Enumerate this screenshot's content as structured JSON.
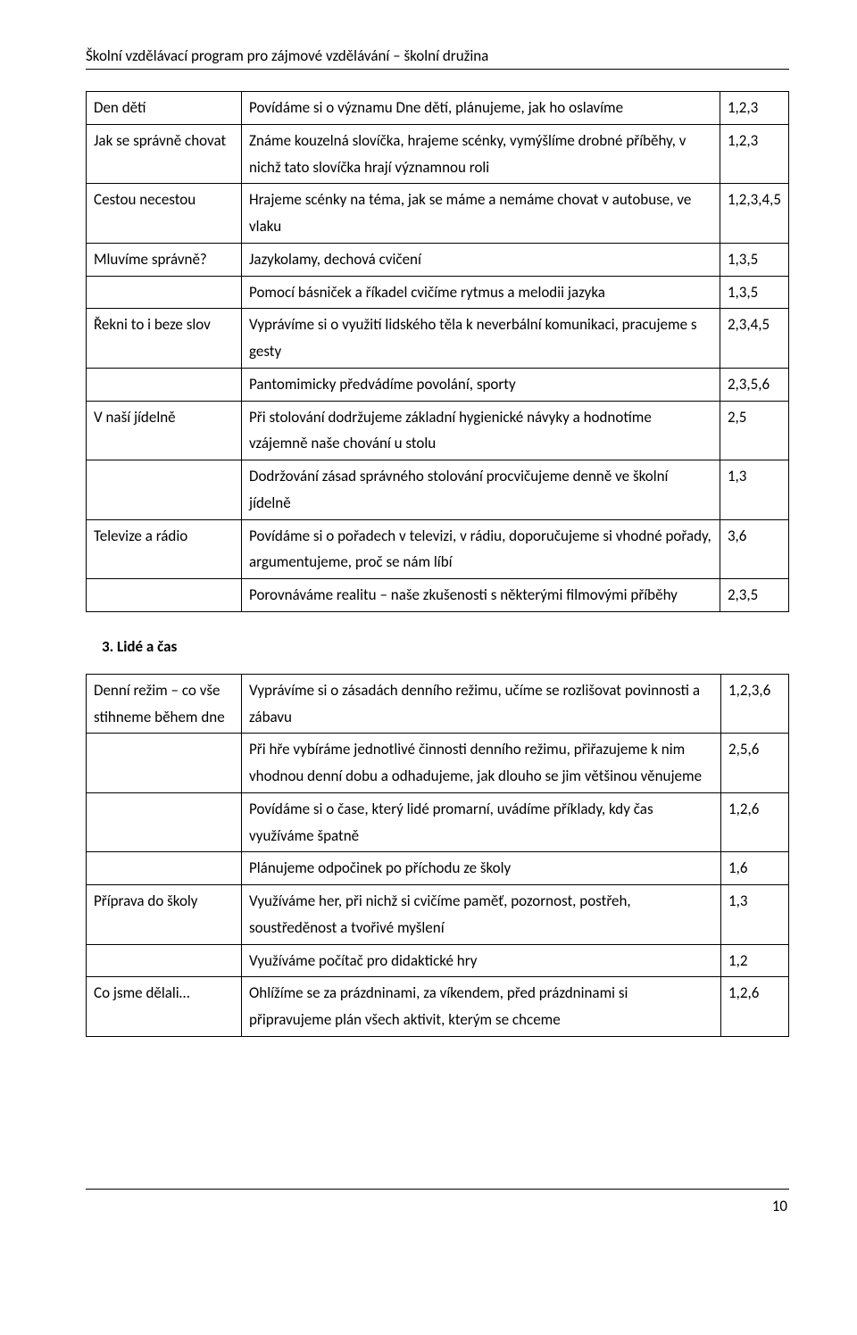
{
  "header": "Školní vzdělávací program pro zájmové vzdělávání – školní družina",
  "table1": {
    "rows": [
      {
        "a": "Den dětí",
        "b": "Povídáme si o významu Dne dětí, plánujeme, jak ho oslavíme",
        "c": "1,2,3"
      },
      {
        "a": "Jak se správně chovat",
        "b": "Známe kouzelná slovíčka, hrajeme scénky, vymýšlíme drobné příběhy, v nichž tato slovíčka hrají významnou roli",
        "c": "1,2,3"
      },
      {
        "a": "Cestou necestou",
        "b": "Hrajeme scénky na téma, jak se máme a nemáme chovat v autobuse, ve vlaku",
        "c": "1,2,3,4,5"
      },
      {
        "a": "Mluvíme správně?",
        "b": "Jazykolamy, dechová cvičení",
        "c": "1,3,5"
      },
      {
        "a": "",
        "b": "Pomocí básniček a říkadel cvičíme rytmus a melodii jazyka",
        "c": "1,3,5"
      },
      {
        "a": "Řekni to i beze slov",
        "b": "Vyprávíme si o využití lidského těla k neverbální komunikaci, pracujeme s gesty",
        "c": "2,3,4,5"
      },
      {
        "a": "",
        "b": "Pantomimicky předvádíme povolání, sporty",
        "c": "2,3,5,6"
      },
      {
        "a": "V naší jídelně",
        "b": "Při stolování dodržujeme základní hygienické návyky a hodnotíme vzájemně naše chování u stolu",
        "c": "2,5"
      },
      {
        "a": "",
        "b": "Dodržování zásad správného stolování procvičujeme denně ve školní jídelně",
        "c": "1,3"
      },
      {
        "a": "Televize a rádio",
        "b": "Povídáme si o pořadech v televizi, v rádiu, doporučujeme si vhodné pořady, argumentujeme, proč se nám líbí",
        "c": "3,6"
      },
      {
        "a": "",
        "b": "Porovnáváme realitu – naše zkušenosti s některými filmovými příběhy",
        "c": "2,3,5"
      }
    ]
  },
  "section_heading": "3.  Lidé a čas",
  "table2": {
    "rows": [
      {
        "a": "Denní režim – co vše stihneme během dne",
        "b": "Vyprávíme si o zásadách denního režimu, učíme se rozlišovat povinnosti a zábavu",
        "c": "1,2,3,6"
      },
      {
        "a": "",
        "b": "Při hře vybíráme jednotlivé činnosti denního režimu, přiřazujeme k nim vhodnou denní dobu a odhadujeme, jak dlouho se jim většinou věnujeme",
        "c": "2,5,6"
      },
      {
        "a": "",
        "b": "Povídáme si o čase, který lidé promarní, uvádíme příklady, kdy čas využíváme špatně",
        "c": "1,2,6"
      },
      {
        "a": "",
        "b": "Plánujeme odpočinek po příchodu ze školy",
        "c": "1,6"
      },
      {
        "a": "Příprava do školy",
        "b": "Využíváme her, při nichž si cvičíme paměť, pozornost, postřeh, soustředěnost a tvořivé myšlení",
        "c": "1,3"
      },
      {
        "a": "",
        "b": "Využíváme počítač pro didaktické hry",
        "c": "1,2"
      },
      {
        "a": "Co jsme dělali…",
        "b": "Ohlížíme se za prázdninami, za víkendem, před prázdninami si připravujeme plán všech aktivit, kterým se chceme",
        "c": "1,2,6"
      }
    ]
  },
  "page_number": "10"
}
